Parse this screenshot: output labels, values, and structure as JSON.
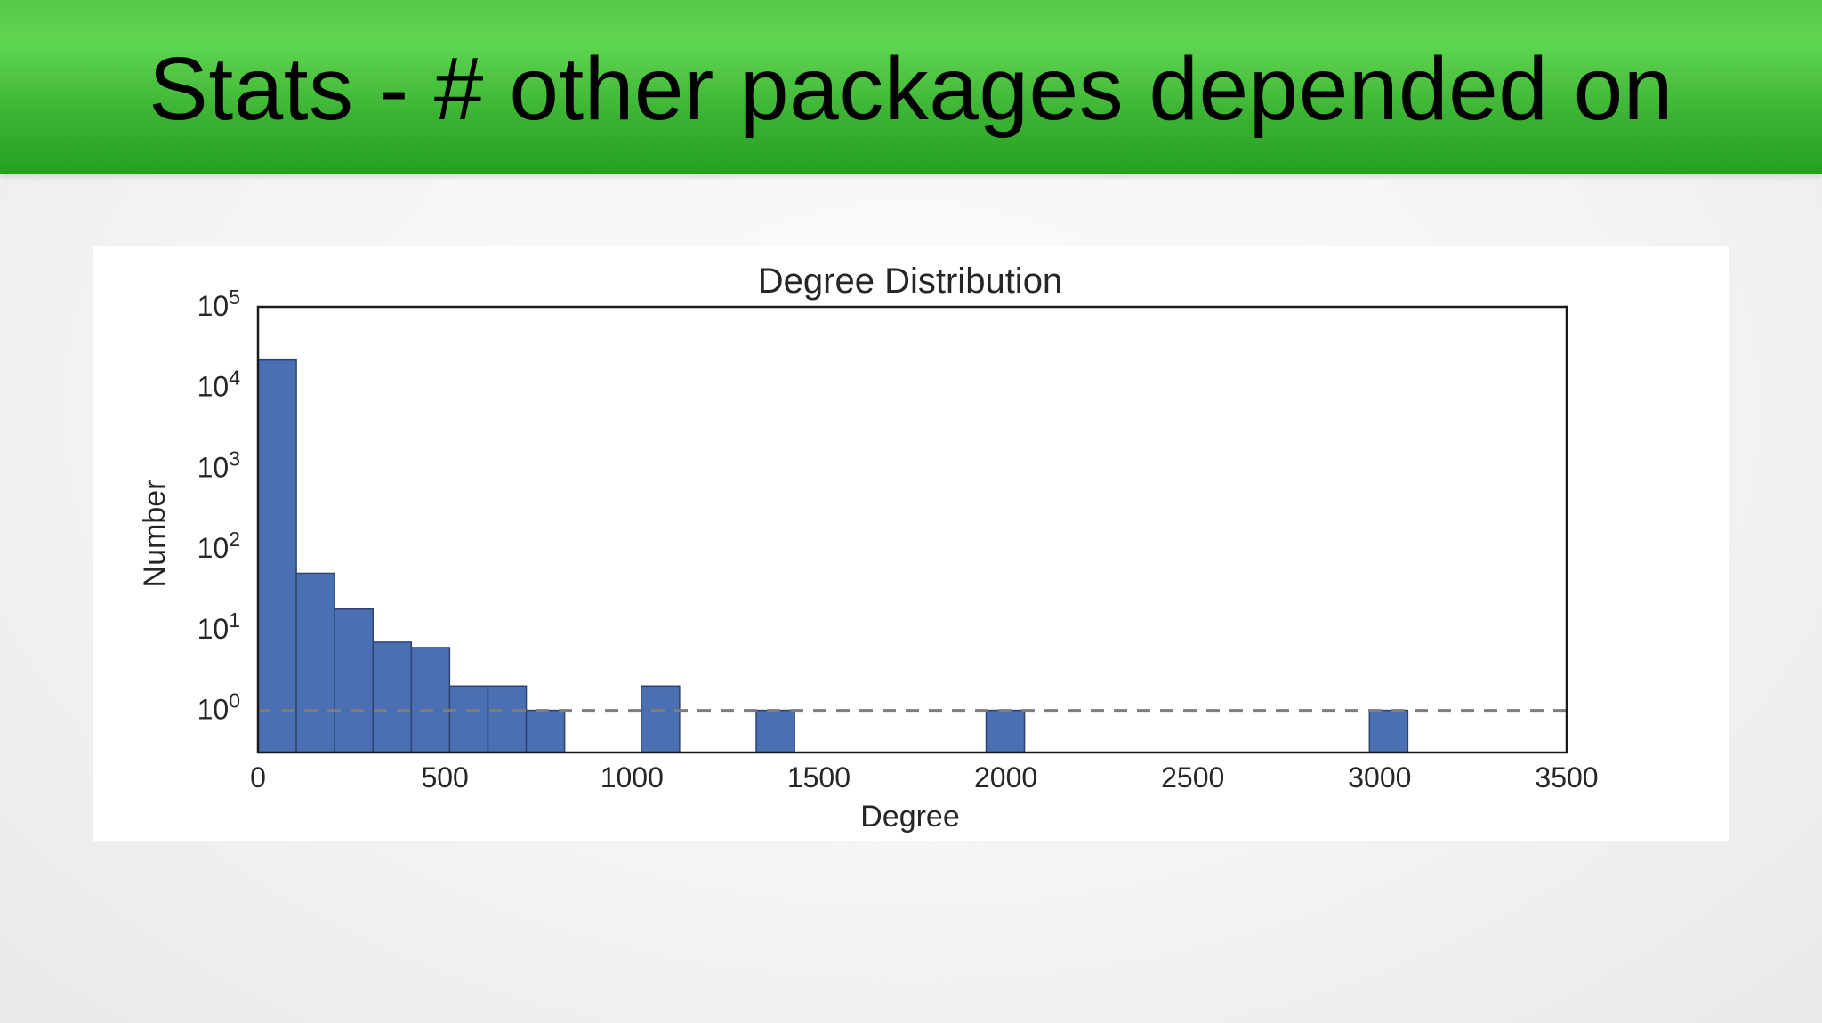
{
  "slide": {
    "title": "Stats - # other packages depended on"
  },
  "chart_data": {
    "type": "bar",
    "title": "Degree Distribution",
    "xlabel": "Degree",
    "ylabel": "Number",
    "yscale": "log",
    "xlim": [
      0,
      3500
    ],
    "ylim": [
      0.3,
      100000
    ],
    "x_ticks": [
      "0",
      "500",
      "1000",
      "1500",
      "2000",
      "2500",
      "3000",
      "3500"
    ],
    "y_ticks": [
      {
        "base": "10",
        "exp": "0"
      },
      {
        "base": "10",
        "exp": "1"
      },
      {
        "base": "10",
        "exp": "2"
      },
      {
        "base": "10",
        "exp": "3"
      },
      {
        "base": "10",
        "exp": "4"
      },
      {
        "base": "10",
        "exp": "5"
      }
    ],
    "bin_width": 102.5,
    "bins": [
      {
        "start": 0,
        "count": 22000
      },
      {
        "start": 102.5,
        "count": 50
      },
      {
        "start": 205,
        "count": 18
      },
      {
        "start": 307.5,
        "count": 7
      },
      {
        "start": 410,
        "count": 6
      },
      {
        "start": 512.5,
        "count": 2
      },
      {
        "start": 615,
        "count": 2
      },
      {
        "start": 717.5,
        "count": 1
      },
      {
        "start": 1025,
        "count": 2
      },
      {
        "start": 1332.5,
        "count": 1
      },
      {
        "start": 1947.5,
        "count": 1
      },
      {
        "start": 2972.5,
        "count": 1
      }
    ],
    "reference_line": {
      "y": 1,
      "style": "dashed"
    },
    "bar_color": "#4a6fb2",
    "bar_edge_color": "#2d4370",
    "reference_line_color": "#7d7d7d",
    "grid": false,
    "legend": "none"
  }
}
